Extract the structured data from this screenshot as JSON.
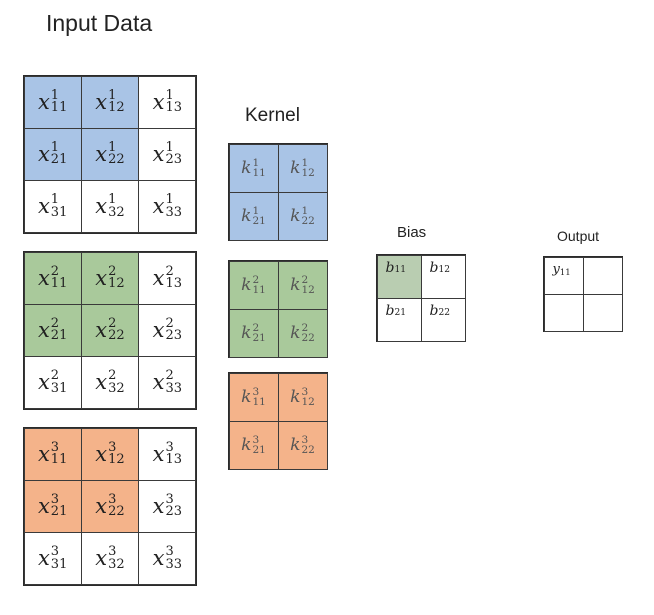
{
  "titles": {
    "input": "Input Data",
    "kernel": "Kernel",
    "bias": "Bias",
    "output": "Output"
  },
  "colors": {
    "blue": "#a9c4e6",
    "green": "#a9c99b",
    "orange": "#f4b38a",
    "bias_highlight": "#b9cdb1",
    "white": "#ffffff"
  },
  "input_channels": [
    {
      "channel": "1",
      "color": "blue",
      "rows": [
        [
          {
            "b": "x",
            "sup": "1",
            "sub": "11",
            "hl": true
          },
          {
            "b": "x",
            "sup": "1",
            "sub": "12",
            "hl": true
          },
          {
            "b": "x",
            "sup": "1",
            "sub": "13",
            "hl": false
          }
        ],
        [
          {
            "b": "x",
            "sup": "1",
            "sub": "21",
            "hl": true
          },
          {
            "b": "x",
            "sup": "1",
            "sub": "22",
            "hl": true
          },
          {
            "b": "x",
            "sup": "1",
            "sub": "23",
            "hl": false
          }
        ],
        [
          {
            "b": "x",
            "sup": "1",
            "sub": "31",
            "hl": false
          },
          {
            "b": "x",
            "sup": "1",
            "sub": "32",
            "hl": false
          },
          {
            "b": "x",
            "sup": "1",
            "sub": "33",
            "hl": false
          }
        ]
      ]
    },
    {
      "channel": "2",
      "color": "green",
      "rows": [
        [
          {
            "b": "x",
            "sup": "2",
            "sub": "11",
            "hl": true
          },
          {
            "b": "x",
            "sup": "2",
            "sub": "12",
            "hl": true
          },
          {
            "b": "x",
            "sup": "2",
            "sub": "13",
            "hl": false
          }
        ],
        [
          {
            "b": "x",
            "sup": "2",
            "sub": "21",
            "hl": true
          },
          {
            "b": "x",
            "sup": "2",
            "sub": "22",
            "hl": true
          },
          {
            "b": "x",
            "sup": "2",
            "sub": "23",
            "hl": false
          }
        ],
        [
          {
            "b": "x",
            "sup": "2",
            "sub": "31",
            "hl": false
          },
          {
            "b": "x",
            "sup": "2",
            "sub": "32",
            "hl": false
          },
          {
            "b": "x",
            "sup": "2",
            "sub": "33",
            "hl": false
          }
        ]
      ]
    },
    {
      "channel": "3",
      "color": "orange",
      "rows": [
        [
          {
            "b": "x",
            "sup": "3",
            "sub": "11",
            "hl": true
          },
          {
            "b": "x",
            "sup": "3",
            "sub": "12",
            "hl": true
          },
          {
            "b": "x",
            "sup": "3",
            "sub": "13",
            "hl": false
          }
        ],
        [
          {
            "b": "x",
            "sup": "3",
            "sub": "21",
            "hl": true
          },
          {
            "b": "x",
            "sup": "3",
            "sub": "22",
            "hl": true
          },
          {
            "b": "x",
            "sup": "3",
            "sub": "23",
            "hl": false
          }
        ],
        [
          {
            "b": "x",
            "sup": "3",
            "sub": "31",
            "hl": false
          },
          {
            "b": "x",
            "sup": "3",
            "sub": "32",
            "hl": false
          },
          {
            "b": "x",
            "sup": "3",
            "sub": "33",
            "hl": false
          }
        ]
      ]
    }
  ],
  "kernels": [
    {
      "channel": "1",
      "color": "blue",
      "rows": [
        [
          {
            "b": "k",
            "sup": "1",
            "sub": "11",
            "hl": true
          },
          {
            "b": "k",
            "sup": "1",
            "sub": "12",
            "hl": true
          }
        ],
        [
          {
            "b": "k",
            "sup": "1",
            "sub": "21",
            "hl": true
          },
          {
            "b": "k",
            "sup": "1",
            "sub": "22",
            "hl": true
          }
        ]
      ]
    },
    {
      "channel": "2",
      "color": "green",
      "rows": [
        [
          {
            "b": "k",
            "sup": "2",
            "sub": "11",
            "hl": true
          },
          {
            "b": "k",
            "sup": "2",
            "sub": "12",
            "hl": true
          }
        ],
        [
          {
            "b": "k",
            "sup": "2",
            "sub": "21",
            "hl": true
          },
          {
            "b": "k",
            "sup": "2",
            "sub": "22",
            "hl": true
          }
        ]
      ]
    },
    {
      "channel": "3",
      "color": "orange",
      "rows": [
        [
          {
            "b": "k",
            "sup": "3",
            "sub": "11",
            "hl": true
          },
          {
            "b": "k",
            "sup": "3",
            "sub": "12",
            "hl": true
          }
        ],
        [
          {
            "b": "k",
            "sup": "3",
            "sub": "21",
            "hl": true
          },
          {
            "b": "k",
            "sup": "3",
            "sub": "22",
            "hl": true
          }
        ]
      ]
    }
  ],
  "bias": {
    "color": "bias_highlight",
    "rows": [
      [
        {
          "b": "b",
          "sub": "11",
          "hl": true
        },
        {
          "b": "b",
          "sub": "12",
          "hl": false
        }
      ],
      [
        {
          "b": "b",
          "sub": "21",
          "hl": false
        },
        {
          "b": "b",
          "sub": "22",
          "hl": false
        }
      ]
    ]
  },
  "output": {
    "rows": [
      [
        {
          "b": "y",
          "sub": "11"
        },
        {
          "b": "",
          "sub": ""
        }
      ],
      [
        {
          "b": "",
          "sub": ""
        },
        {
          "b": "",
          "sub": ""
        }
      ]
    ]
  }
}
